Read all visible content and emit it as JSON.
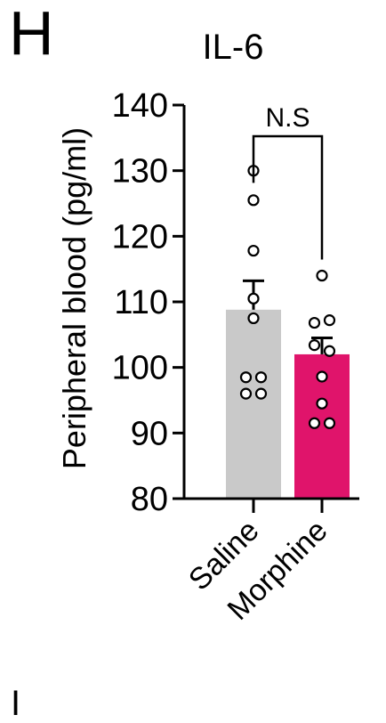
{
  "panel_letter": "H",
  "next_panel_letter": "I",
  "chart_data": {
    "type": "bar",
    "title": "IL-6",
    "ylabel": "Peripheral blood (pg/ml)",
    "xlabel": "",
    "ylim": [
      80,
      140
    ],
    "yticks": [
      80,
      90,
      100,
      110,
      120,
      130,
      140
    ],
    "categories": [
      "Saline",
      "Morphine"
    ],
    "values": [
      108.8,
      102.0
    ],
    "sem": [
      4.4,
      2.5
    ],
    "points": [
      [
        130,
        125.5,
        117.8,
        110.5,
        107.5,
        98.5,
        98.5,
        96,
        96
      ],
      [
        114,
        106.8,
        107.2,
        103.4,
        102.5,
        98.6,
        94.5,
        91.5,
        91.5
      ]
    ],
    "colors": [
      "#c9c9c9",
      "#e0146b"
    ],
    "significance": {
      "between": [
        0,
        1
      ],
      "label": "N.S"
    }
  }
}
